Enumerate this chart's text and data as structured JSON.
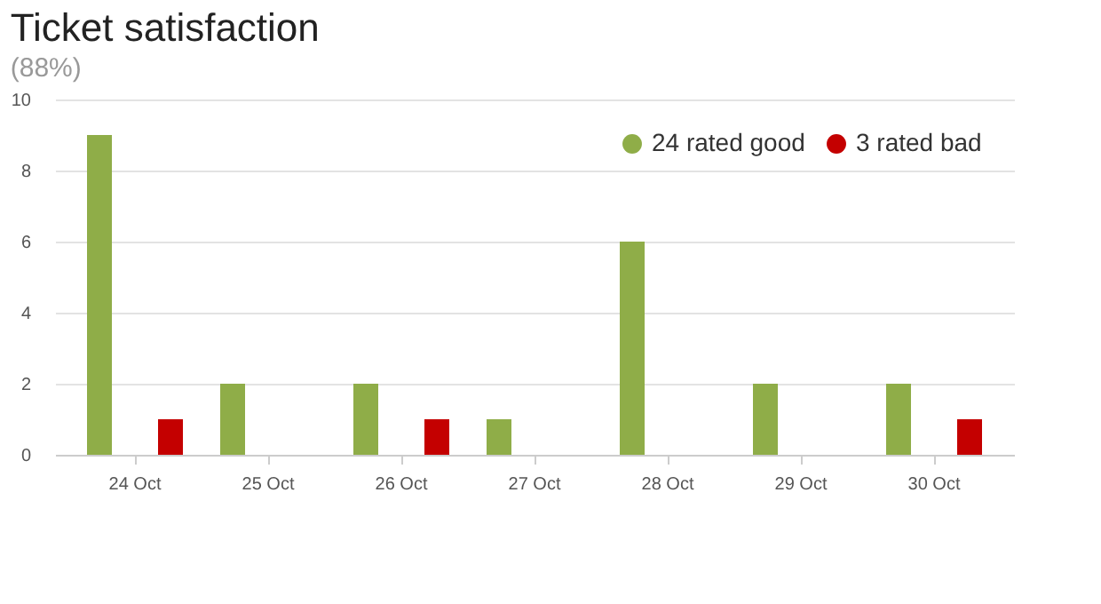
{
  "chart_data": {
    "type": "bar",
    "title": "Ticket satisfaction",
    "subtitle": "(88%)",
    "categories": [
      "24 Oct",
      "25 Oct",
      "26 Oct",
      "27 Oct",
      "28 Oct",
      "29 Oct",
      "30 Oct"
    ],
    "series": [
      {
        "name": "24 rated good",
        "color": "#8fad48",
        "values": [
          9,
          2,
          2,
          1,
          6,
          2,
          2
        ]
      },
      {
        "name": "3 rated bad",
        "color": "#c40000",
        "values": [
          1,
          0,
          1,
          0,
          0,
          0,
          1
        ]
      }
    ],
    "ylim": [
      0,
      10
    ],
    "yticks": [
      0,
      2,
      4,
      6,
      8,
      10
    ],
    "grid": "y",
    "legend": "top right"
  }
}
